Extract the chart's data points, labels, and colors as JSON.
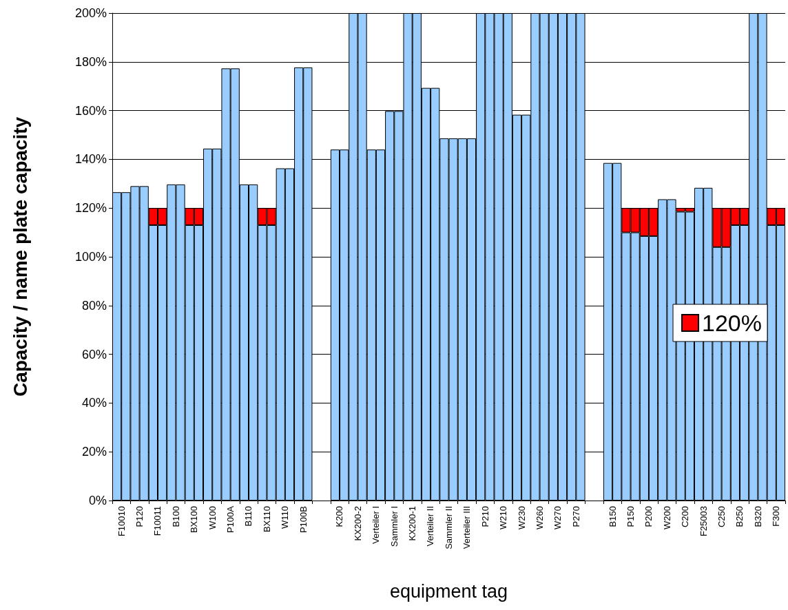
{
  "chart_data": {
    "type": "bar",
    "xlabel": "equipment tag",
    "ylabel": "Capacity / name plate capacity",
    "categories": [
      "F10010",
      null,
      "P120",
      null,
      "F10011",
      null,
      "B100",
      null,
      "BX100",
      null,
      "W100",
      null,
      "P100A",
      null,
      "B110",
      null,
      "BX110",
      null,
      "W110",
      null,
      "P100B",
      null,
      null,
      null,
      "K200",
      null,
      "KX200-2",
      null,
      "Verteiler I",
      null,
      "Sammler I",
      null,
      "KX200-1",
      null,
      "Verteiler II",
      null,
      "Sammler II",
      null,
      "Verteiler III",
      null,
      "P210",
      null,
      "W210",
      null,
      "W230",
      null,
      "W260",
      null,
      "W270",
      null,
      "P270",
      null,
      null,
      null,
      "B150",
      null,
      "P150",
      null,
      "P200",
      null,
      "W200",
      null,
      "C200",
      null,
      "F25003",
      null,
      "C250",
      null,
      "B250",
      null,
      "B320",
      null,
      "F300",
      null
    ],
    "series": [
      {
        "color": "#99ccff",
        "values": [
          126.5,
          126.5,
          129,
          129,
          113,
          113,
          129.7,
          129.7,
          113,
          113,
          144.4,
          144.4,
          177.3,
          177.3,
          129.7,
          129.7,
          113,
          113,
          136.3,
          136.3,
          177.7,
          177.7,
          null,
          null,
          144,
          144,
          200,
          200,
          144,
          144,
          159.8,
          159.8,
          200,
          200,
          169.3,
          169.3,
          148.6,
          148.6,
          148.6,
          148.6,
          200,
          200,
          200,
          200,
          158.3,
          158.3,
          200,
          200,
          200,
          200,
          200,
          200,
          null,
          null,
          138.5,
          138.5,
          110,
          110,
          108.5,
          108.5,
          123.6,
          123.6,
          118.5,
          118.5,
          128.3,
          128.3,
          104,
          104,
          113,
          113,
          200,
          200,
          113,
          113
        ]
      },
      {
        "name": "120%",
        "color": "#ff0000",
        "values": [
          null,
          null,
          null,
          null,
          7,
          7,
          null,
          null,
          7,
          7,
          null,
          null,
          null,
          null,
          null,
          null,
          7,
          7,
          null,
          null,
          null,
          null,
          null,
          null,
          null,
          null,
          null,
          null,
          null,
          null,
          null,
          null,
          null,
          null,
          null,
          null,
          null,
          null,
          null,
          null,
          null,
          null,
          null,
          null,
          null,
          null,
          null,
          null,
          null,
          null,
          null,
          null,
          null,
          null,
          null,
          null,
          10,
          10,
          11.5,
          11.5,
          null,
          null,
          1.5,
          1.5,
          null,
          null,
          16,
          16,
          7,
          7,
          null,
          null,
          7,
          7
        ]
      }
    ],
    "stacked": true,
    "ylim": [
      0,
      200
    ],
    "yticks": [
      {
        "value": 0,
        "label": "0%"
      },
      {
        "value": 20,
        "label": "20%"
      },
      {
        "value": 40,
        "label": "40%"
      },
      {
        "value": 60,
        "label": "60%"
      },
      {
        "value": 80,
        "label": "80%"
      },
      {
        "value": 100,
        "label": "100%"
      },
      {
        "value": 120,
        "label": "120%"
      },
      {
        "value": 140,
        "label": "140%"
      },
      {
        "value": 160,
        "label": "160%"
      },
      {
        "value": 180,
        "label": "180%"
      },
      {
        "value": 200,
        "label": "200%"
      }
    ],
    "grid": "y",
    "legend": "right"
  }
}
